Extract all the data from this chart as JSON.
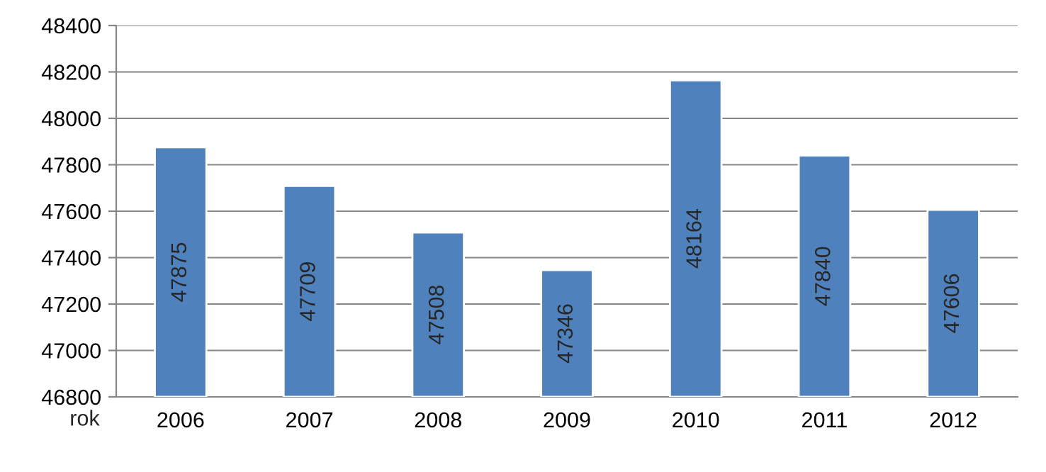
{
  "chart_data": {
    "type": "bar",
    "xlabel": "rok",
    "categories": [
      "2006",
      "2007",
      "2008",
      "2009",
      "2010",
      "2011",
      "2012"
    ],
    "values": [
      47875,
      47709,
      47508,
      47346,
      48164,
      47840,
      47606
    ],
    "color": "#4f81bd",
    "ylim": [
      46800,
      48400
    ],
    "yticks": [
      46800,
      47000,
      47200,
      47400,
      47600,
      47800,
      48000,
      48200,
      48400
    ],
    "grid": "y",
    "data_labels": true
  }
}
